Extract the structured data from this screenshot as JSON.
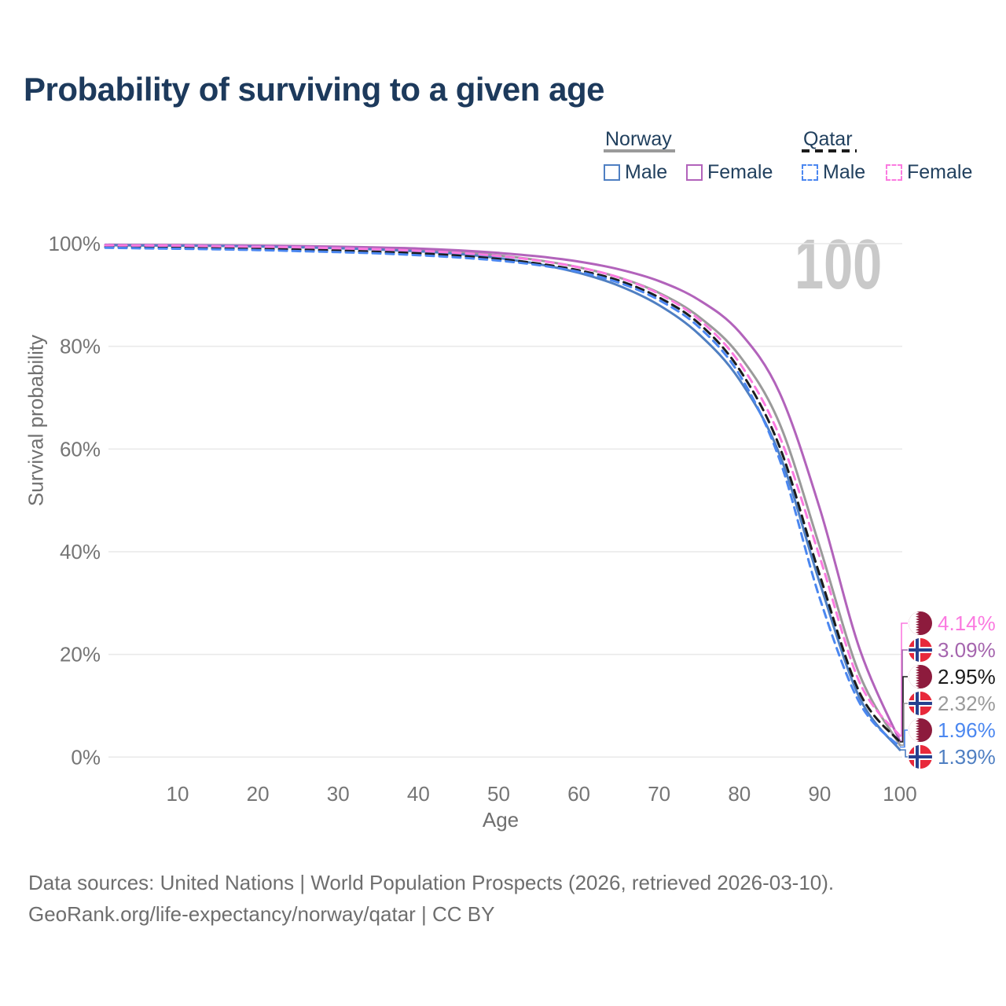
{
  "title": "Probability of surviving to a given age",
  "watermark": "100",
  "legend": {
    "groups": [
      {
        "country": "Norway",
        "line_style": "solid",
        "line_color": "#9a9a9a",
        "items": [
          {
            "label": "Male",
            "color": "#4f7fc2"
          },
          {
            "label": "Female",
            "color": "#b263bb"
          }
        ]
      },
      {
        "country": "Qatar",
        "line_style": "dashed",
        "line_color": "#1c1c1c",
        "items": [
          {
            "label": "Male",
            "color": "#4b87f0"
          },
          {
            "label": "Female",
            "color": "#fb7ae0"
          }
        ]
      }
    ]
  },
  "chart_data": {
    "type": "line",
    "title": "Probability of surviving to a given age",
    "xlabel": "Age",
    "ylabel": "Survival probability",
    "xlim": [
      1,
      100
    ],
    "ylim": [
      0,
      100
    ],
    "grid": "horizontal-only",
    "legend_position": "top-right",
    "x_ticks": [
      10,
      20,
      30,
      40,
      50,
      60,
      70,
      80,
      90,
      100
    ],
    "y_ticks": [
      "0%",
      "20%",
      "40%",
      "60%",
      "80%",
      "100%"
    ],
    "y_tick_values": [
      0,
      20,
      40,
      60,
      80,
      100
    ],
    "x": [
      1,
      5,
      10,
      15,
      20,
      25,
      30,
      35,
      40,
      45,
      50,
      55,
      60,
      65,
      70,
      75,
      80,
      85,
      90,
      95,
      100
    ],
    "series": [
      {
        "name": "Norway Both",
        "country": "Norway",
        "sex": "both",
        "color": "#9a9a9a",
        "dash": false,
        "values": [
          99.72,
          99.68,
          99.65,
          99.6,
          99.5,
          99.4,
          99.25,
          99.05,
          98.75,
          98.35,
          97.7,
          96.75,
          95.4,
          93.4,
          90.4,
          85.7,
          78.2,
          65.0,
          41.0,
          16.0,
          2.32
        ]
      },
      {
        "name": "Norway Female",
        "country": "Norway",
        "sex": "female",
        "color": "#b263bb",
        "dash": false,
        "values": [
          99.78,
          99.75,
          99.72,
          99.68,
          99.62,
          99.52,
          99.4,
          99.25,
          99.05,
          98.7,
          98.2,
          97.5,
          96.5,
          95.0,
          92.7,
          89.0,
          82.8,
          71.0,
          48.5,
          21.0,
          3.09
        ]
      },
      {
        "name": "Norway Male",
        "country": "Norway",
        "sex": "male",
        "color": "#4f7fc2",
        "dash": false,
        "values": [
          99.7,
          99.65,
          99.6,
          99.55,
          99.45,
          99.3,
          99.1,
          98.85,
          98.5,
          98.0,
          97.2,
          96.0,
          94.3,
          91.8,
          88.0,
          82.3,
          73.5,
          59.0,
          34.0,
          11.5,
          1.39
        ]
      },
      {
        "name": "Qatar Both",
        "country": "Qatar",
        "sex": "both",
        "color": "#1c1c1c",
        "dash": true,
        "values": [
          99.35,
          99.3,
          99.2,
          99.1,
          99.0,
          98.85,
          98.65,
          98.4,
          98.1,
          97.65,
          97.0,
          96.1,
          94.8,
          92.8,
          89.5,
          84.4,
          75.5,
          60.5,
          35.5,
          12.5,
          2.95
        ]
      },
      {
        "name": "Qatar Female",
        "country": "Qatar",
        "sex": "female",
        "color": "#fb7ae0",
        "dash": true,
        "values": [
          99.68,
          99.64,
          99.6,
          99.5,
          99.4,
          99.3,
          99.1,
          98.9,
          98.6,
          98.2,
          97.6,
          96.7,
          95.4,
          93.4,
          90.2,
          85.2,
          76.8,
          62.5,
          39.0,
          14.5,
          4.14
        ]
      },
      {
        "name": "Qatar Male",
        "country": "Qatar",
        "sex": "male",
        "color": "#4b87f0",
        "dash": true,
        "values": [
          99.2,
          99.1,
          99.0,
          98.9,
          98.75,
          98.55,
          98.35,
          98.1,
          97.75,
          97.3,
          96.7,
          95.8,
          94.5,
          92.4,
          89.0,
          83.7,
          74.5,
          58.0,
          31.0,
          10.5,
          1.96
        ]
      }
    ]
  },
  "end_labels": [
    {
      "value": "4.14%",
      "value_num": 4.14,
      "color": "#fb7ae0",
      "flag": "qatar"
    },
    {
      "value": "3.09%",
      "value_num": 3.09,
      "color": "#a565ae",
      "flag": "norway"
    },
    {
      "value": "2.95%",
      "value_num": 2.95,
      "color": "#1a1a1a",
      "flag": "qatar"
    },
    {
      "value": "2.32%",
      "value_num": 2.32,
      "color": "#9a9a9a",
      "flag": "norway"
    },
    {
      "value": "1.96%",
      "value_num": 1.96,
      "color": "#4b87f0",
      "flag": "qatar"
    },
    {
      "value": "1.39%",
      "value_num": 1.39,
      "color": "#4f7fc2",
      "flag": "norway"
    }
  ],
  "flag_colors": {
    "qatar_maroon": "#8d1b3d",
    "norway_red": "#e8293b",
    "norway_blue": "#26418f"
  },
  "footer": {
    "line1": "Data sources: United Nations | World Population Prospects (2026, retrieved 2026-03-10).",
    "line2": "GeoRank.org/life-expectancy/norway/qatar | CC BY"
  }
}
